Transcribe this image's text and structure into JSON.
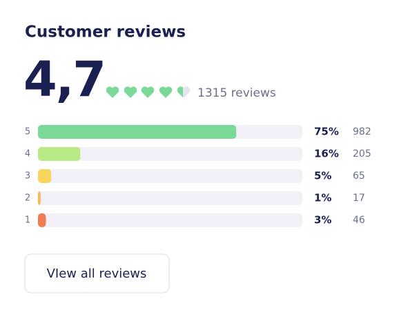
{
  "title": "Customer reviews",
  "rating": "4,7",
  "reviews_count": "1315 reviews",
  "rows": [
    {
      "stars": 5,
      "percent": 75,
      "percent_label": "75%",
      "count": 982,
      "color": "#7ad997"
    },
    {
      "stars": 4,
      "percent": 16,
      "percent_label": "16%",
      "count": 205,
      "color": "#b8ea85"
    },
    {
      "stars": 3,
      "percent": 5,
      "percent_label": "5%",
      "count": 65,
      "color": "#f8d55d"
    },
    {
      "stars": 2,
      "percent": 1,
      "percent_label": "1%",
      "count": 17,
      "color": "#f9b952"
    },
    {
      "stars": 1,
      "percent": 3,
      "percent_label": "3%",
      "count": 46,
      "color": "#f07c54"
    }
  ],
  "button": "VIew all reviews"
}
